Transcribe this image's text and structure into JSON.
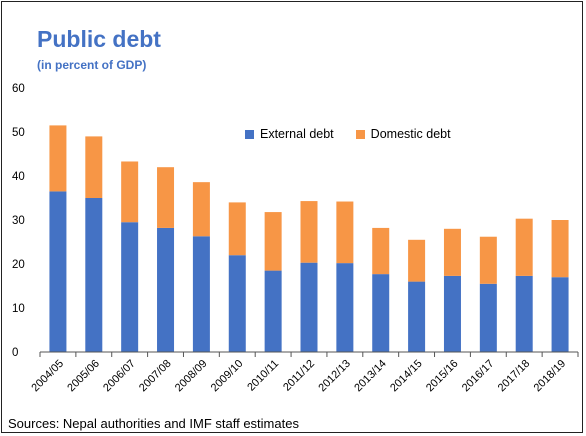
{
  "title": "Public debt",
  "subtitle": "(in percent of GDP)",
  "source": "Sources: Nepal authorities and IMF staff estimates",
  "colors": {
    "external": "#4472c4",
    "domestic": "#f79646",
    "title": "#4472c4"
  },
  "chart_data": {
    "type": "bar",
    "stacked": true,
    "title": "Public debt",
    "subtitle": "(in percent of GDP)",
    "categories": [
      "2004/05",
      "2005/06",
      "2006/07",
      "2007/08",
      "2008/09",
      "2009/10",
      "2010/11",
      "2011/12",
      "2012/13",
      "2013/14",
      "2014/15",
      "2015/16",
      "2016/17",
      "2017/18",
      "2018/19"
    ],
    "series": [
      {
        "name": "External debt",
        "values": [
          36.5,
          35.0,
          29.5,
          28.2,
          26.3,
          22.0,
          18.5,
          20.3,
          20.2,
          17.7,
          16.0,
          17.3,
          15.5,
          17.3,
          17.0
        ]
      },
      {
        "name": "Domestic debt",
        "values": [
          15.0,
          14.0,
          13.8,
          13.8,
          12.3,
          12.0,
          13.3,
          14.0,
          14.0,
          10.5,
          9.5,
          10.7,
          10.7,
          13.0,
          13.0
        ]
      }
    ],
    "ylim": [
      0,
      60
    ],
    "yticks": [
      0,
      10,
      20,
      30,
      40,
      50,
      60
    ],
    "legend": "top-center",
    "grid": false
  }
}
